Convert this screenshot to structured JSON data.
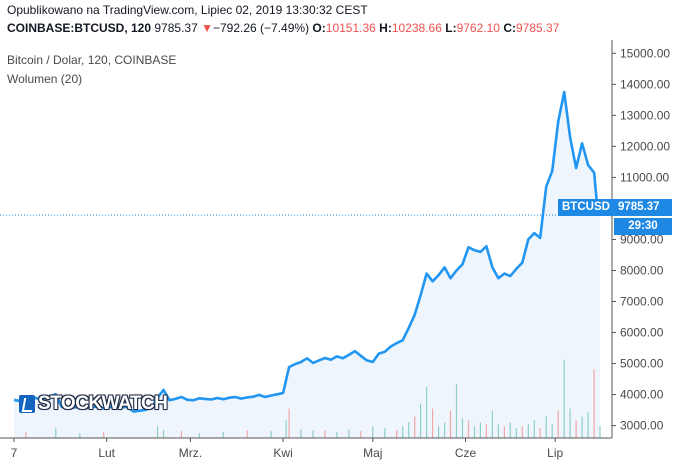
{
  "header": {
    "published": "Opublikowano na TradingView.com, Lipiec 02, 2019 13:30:32 CEST",
    "symbol": "COINBASE:BTCUSD, 120",
    "last": "9785.37",
    "change_arrow": "▼",
    "change": "−792.26 (−7.49%)",
    "open_label": "O:",
    "open": "10151.36",
    "high_label": "H:",
    "high": "10238.66",
    "low_label": "L:",
    "low": "9762.10",
    "close_label": "C:",
    "close": "9785.37"
  },
  "legend": {
    "series": "Bitcoin / Dolar, 120, COINBASE",
    "volume": "Wolumen (20)"
  },
  "price_box": {
    "ticker": "BTCUSD",
    "value": "9785.37",
    "countdown": "29:30"
  },
  "logo": {
    "text": "STOCKWATCH"
  },
  "colors": {
    "line": "#2196f3",
    "area": "#eef5fc",
    "vol_up": "#8fcfc6",
    "vol_down": "#f2a6a6",
    "axis_text": "#4a4a4a",
    "price_label_bg": "#1e88e5"
  },
  "chart_data": {
    "type": "area",
    "series": [
      {
        "name": "Bitcoin / Dolar, 120, COINBASE",
        "points": [
          [
            0,
            3830
          ],
          [
            2,
            3790
          ],
          [
            4,
            3860
          ],
          [
            6,
            3920
          ],
          [
            8,
            3870
          ],
          [
            10,
            3880
          ],
          [
            12,
            3950
          ],
          [
            14,
            4010
          ],
          [
            16,
            3600
          ],
          [
            18,
            3610
          ],
          [
            20,
            3580
          ],
          [
            22,
            3610
          ],
          [
            24,
            3560
          ],
          [
            26,
            3590
          ],
          [
            28,
            3620
          ],
          [
            30,
            3560
          ],
          [
            32,
            3600
          ],
          [
            34,
            3570
          ],
          [
            36,
            3590
          ],
          [
            38,
            3600
          ],
          [
            40,
            3450
          ],
          [
            42,
            3480
          ],
          [
            44,
            3510
          ],
          [
            46,
            3570
          ],
          [
            48,
            3900
          ],
          [
            50,
            4150
          ],
          [
            52,
            3820
          ],
          [
            54,
            3860
          ],
          [
            56,
            3920
          ],
          [
            58,
            3830
          ],
          [
            60,
            3820
          ],
          [
            62,
            3880
          ],
          [
            64,
            3860
          ],
          [
            66,
            3840
          ],
          [
            68,
            3890
          ],
          [
            70,
            3850
          ],
          [
            72,
            3900
          ],
          [
            74,
            3920
          ],
          [
            76,
            3870
          ],
          [
            78,
            3910
          ],
          [
            80,
            3930
          ],
          [
            82,
            3990
          ],
          [
            84,
            3920
          ],
          [
            86,
            3970
          ],
          [
            88,
            4010
          ],
          [
            90,
            4050
          ],
          [
            92,
            4890
          ],
          [
            94,
            4980
          ],
          [
            96,
            5050
          ],
          [
            98,
            5170
          ],
          [
            100,
            5020
          ],
          [
            102,
            5100
          ],
          [
            104,
            5180
          ],
          [
            106,
            5120
          ],
          [
            108,
            5230
          ],
          [
            110,
            5170
          ],
          [
            112,
            5280
          ],
          [
            114,
            5400
          ],
          [
            116,
            5250
          ],
          [
            118,
            5100
          ],
          [
            120,
            5050
          ],
          [
            122,
            5320
          ],
          [
            124,
            5380
          ],
          [
            126,
            5550
          ],
          [
            128,
            5660
          ],
          [
            130,
            5750
          ],
          [
            132,
            6150
          ],
          [
            134,
            6570
          ],
          [
            136,
            7200
          ],
          [
            138,
            7900
          ],
          [
            140,
            7650
          ],
          [
            142,
            7850
          ],
          [
            144,
            8100
          ],
          [
            146,
            7750
          ],
          [
            148,
            8000
          ],
          [
            150,
            8200
          ],
          [
            152,
            8750
          ],
          [
            154,
            8650
          ],
          [
            156,
            8600
          ],
          [
            158,
            8780
          ],
          [
            160,
            8100
          ],
          [
            162,
            7750
          ],
          [
            164,
            7900
          ],
          [
            166,
            7820
          ],
          [
            168,
            8050
          ],
          [
            170,
            8250
          ],
          [
            172,
            9000
          ],
          [
            174,
            9200
          ],
          [
            176,
            9050
          ],
          [
            178,
            10700
          ],
          [
            180,
            11200
          ],
          [
            182,
            12800
          ],
          [
            184,
            13750
          ],
          [
            186,
            12300
          ],
          [
            188,
            11300
          ],
          [
            190,
            12100
          ],
          [
            192,
            11400
          ],
          [
            194,
            11150
          ],
          [
            195,
            10150
          ],
          [
            196,
            9785.37
          ]
        ]
      }
    ],
    "volume_range": [
      0,
      100
    ],
    "volume": [
      [
        4,
        6
      ],
      [
        14,
        10
      ],
      [
        22,
        5
      ],
      [
        30,
        6
      ],
      [
        48,
        12
      ],
      [
        50,
        8
      ],
      [
        56,
        7
      ],
      [
        62,
        5
      ],
      [
        70,
        6
      ],
      [
        78,
        8
      ],
      [
        86,
        7
      ],
      [
        91,
        18
      ],
      [
        92,
        30
      ],
      [
        96,
        9
      ],
      [
        100,
        8
      ],
      [
        104,
        8
      ],
      [
        108,
        6
      ],
      [
        112,
        9
      ],
      [
        116,
        7
      ],
      [
        120,
        12
      ],
      [
        124,
        10
      ],
      [
        128,
        8
      ],
      [
        130,
        12
      ],
      [
        132,
        16
      ],
      [
        134,
        22
      ],
      [
        136,
        35
      ],
      [
        138,
        52
      ],
      [
        140,
        30
      ],
      [
        142,
        12
      ],
      [
        144,
        16
      ],
      [
        146,
        28
      ],
      [
        148,
        55
      ],
      [
        150,
        20
      ],
      [
        152,
        18
      ],
      [
        154,
        12
      ],
      [
        156,
        16
      ],
      [
        158,
        14
      ],
      [
        160,
        28
      ],
      [
        162,
        14
      ],
      [
        164,
        12
      ],
      [
        166,
        16
      ],
      [
        168,
        10
      ],
      [
        170,
        12
      ],
      [
        172,
        14
      ],
      [
        174,
        18
      ],
      [
        176,
        10
      ],
      [
        178,
        22
      ],
      [
        180,
        14
      ],
      [
        182,
        28
      ],
      [
        184,
        80
      ],
      [
        186,
        30
      ],
      [
        188,
        18
      ],
      [
        190,
        22
      ],
      [
        192,
        26
      ],
      [
        194,
        70
      ],
      [
        196,
        12
      ]
    ],
    "x_tick_labels": [
      "7",
      "Lut",
      "Mrz.",
      "Kwi",
      "Maj",
      "Cze",
      "Lip"
    ],
    "x_tick_positions": [
      0,
      31,
      59,
      90,
      120,
      151,
      181
    ],
    "x_range": [
      -2,
      200
    ],
    "y_ticks": [
      "15000.00",
      "14000.00",
      "13000.00",
      "12000.00",
      "11000.00",
      "10000.00",
      "9000.00",
      "8000.00",
      "7000.00",
      "6000.00",
      "5000.00",
      "4000.00",
      "3000.00"
    ],
    "y_tick_values": [
      15000,
      14000,
      13000,
      12000,
      11000,
      10000,
      9000,
      8000,
      7000,
      6000,
      5000,
      4000,
      3000
    ],
    "ylim": [
      2600,
      15300
    ],
    "last_value": 9785.37,
    "grid": false,
    "legend_position": "top-left"
  }
}
